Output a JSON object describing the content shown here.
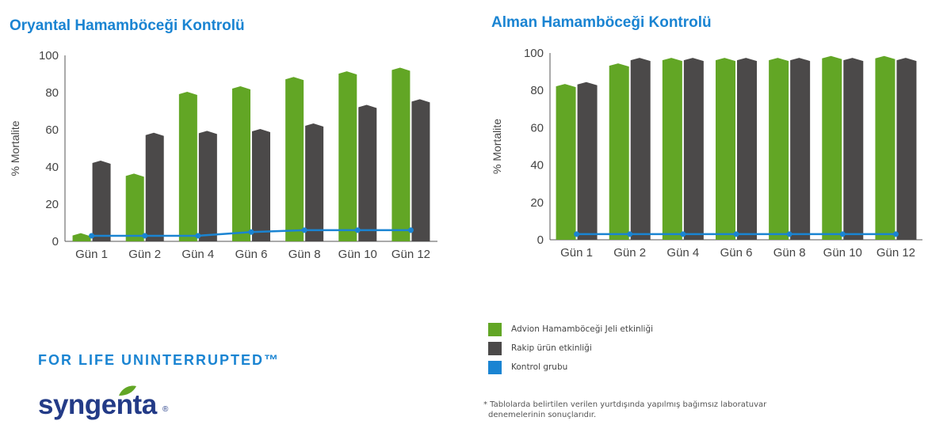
{
  "chart_data": [
    {
      "type": "bar",
      "title": "Oryantal Hamamböceği Kontrolü",
      "ylabel": "% Mortalite",
      "xlabel": "",
      "ylim": [
        0,
        100
      ],
      "yticks": [
        "0",
        "20",
        "40",
        "60",
        "80",
        "100"
      ],
      "categories": [
        "Gün 1",
        "Gün 2",
        "Gün 4",
        "Gün 6",
        "Gün 8",
        "Gün 10",
        "Gün 12"
      ],
      "series": [
        {
          "name": "Advion Hamamböceği Jeli etkinliği",
          "kind": "bar",
          "color": "#62a625",
          "values": [
            4,
            36,
            80,
            83,
            88,
            91,
            93
          ]
        },
        {
          "name": "Rakip ürün etkinliği",
          "kind": "bar",
          "color": "#4b4949",
          "values": [
            43,
            58,
            59,
            60,
            63,
            73,
            76
          ]
        },
        {
          "name": "Kontrol grubu",
          "kind": "line",
          "color": "#1a84d2",
          "values": [
            3,
            3,
            3,
            5,
            6,
            6,
            6
          ]
        }
      ]
    },
    {
      "type": "bar",
      "title": "Alman Hamamböceği Kontrolü",
      "ylabel": "% Mortalite",
      "xlabel": "",
      "ylim": [
        0,
        100
      ],
      "yticks": [
        "0",
        "20",
        "40",
        "60",
        "80",
        "100"
      ],
      "categories": [
        "Gün 1",
        "Gün 2",
        "Gün 4",
        "Gün 6",
        "Gün 8",
        "Gün 10",
        "Gün 12"
      ],
      "series": [
        {
          "name": "Advion Hamamböceği Jeli etkinliği",
          "kind": "bar",
          "color": "#62a625",
          "values": [
            83,
            94,
            97,
            97,
            97,
            98,
            98
          ]
        },
        {
          "name": "Rakip ürün etkinliği",
          "kind": "bar",
          "color": "#4b4949",
          "values": [
            84,
            97,
            97,
            97,
            97,
            97,
            97
          ]
        },
        {
          "name": "Kontrol grubu",
          "kind": "line",
          "color": "#1a84d2",
          "values": [
            3,
            3,
            3,
            3,
            3,
            3,
            3
          ]
        }
      ]
    }
  ],
  "legend": [
    {
      "label": "Advion Hamamböceği Jeli etkinliği",
      "color": "#62a625"
    },
    {
      "label": "Rakip ürün etkinliği",
      "color": "#4b4949"
    },
    {
      "label": "Kontrol grubu",
      "color": "#1a84d2"
    }
  ],
  "footnote": {
    "line1": "* Tablolarda belirtilen verilen yurtdışında yapılmış bağımsız laboratuvar",
    "line2": "denemelerinin sonuçlarıdır."
  },
  "brand": {
    "slogan": "FOR LIFE UNINTERRUPTED™",
    "logo_text": "syngenta",
    "logo_mark": "®"
  }
}
